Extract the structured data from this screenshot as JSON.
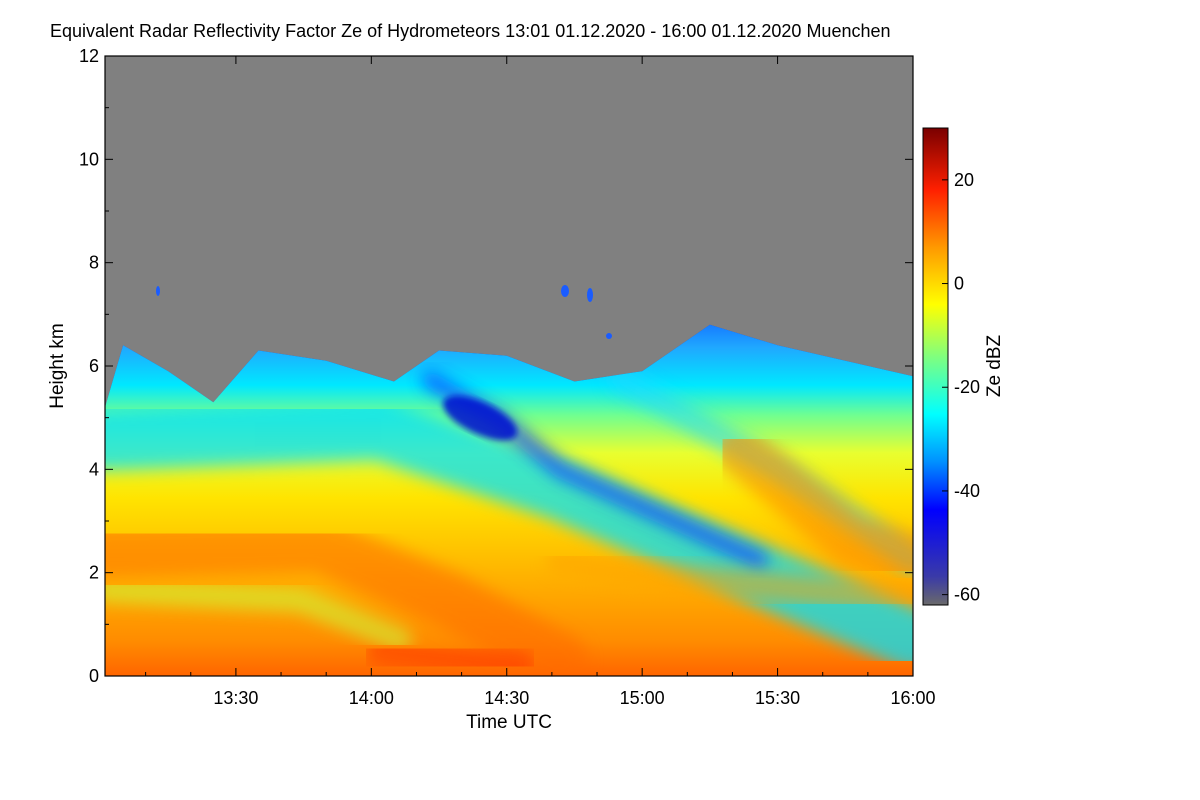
{
  "chart_data": {
    "type": "heatmap",
    "title": "Equivalent Radar Reflectivity Factor Ze of Hydrometeors   13:01 01.12.2020 - 16:00 01.12.2020 Muenchen",
    "xlabel": "Time UTC",
    "ylabel": "Height km",
    "x_range": [
      "13:01",
      "16:00"
    ],
    "ylim": [
      0,
      12
    ],
    "x_ticks": [
      "13:30",
      "14:00",
      "14:30",
      "15:00",
      "15:30",
      "16:00"
    ],
    "y_ticks": [
      "0",
      "2",
      "4",
      "6",
      "8",
      "10",
      "12"
    ],
    "colorbar": {
      "label": "Ze dBZ",
      "range": [
        -62,
        30
      ],
      "ticks": [
        "20",
        "0",
        "-20",
        "-40",
        "-60"
      ],
      "no_signal_color": "#808080"
    },
    "echo_top_km": [
      {
        "time": "13:01",
        "top": 5.2
      },
      {
        "time": "13:05",
        "top": 6.4
      },
      {
        "time": "13:15",
        "top": 5.9
      },
      {
        "time": "13:25",
        "top": 5.3
      },
      {
        "time": "13:35",
        "top": 6.3
      },
      {
        "time": "13:50",
        "top": 6.1
      },
      {
        "time": "14:05",
        "top": 5.7
      },
      {
        "time": "14:15",
        "top": 6.3
      },
      {
        "time": "14:30",
        "top": 6.2
      },
      {
        "time": "14:45",
        "top": 5.7
      },
      {
        "time": "15:00",
        "top": 5.9
      },
      {
        "time": "15:15",
        "top": 6.8
      },
      {
        "time": "15:30",
        "top": 6.4
      },
      {
        "time": "15:45",
        "top": 6.1
      },
      {
        "time": "16:00",
        "top": 5.8
      }
    ],
    "bands_dbz": [
      {
        "height_range_km": [
          0,
          1
        ],
        "ze_dbz": [
          5,
          15
        ]
      },
      {
        "height_range_km": [
          1,
          4
        ],
        "ze_dbz": [
          -5,
          10
        ]
      },
      {
        "height_range_km": [
          4,
          5
        ],
        "ze_dbz": [
          -20,
          -5
        ]
      },
      {
        "height_range_km": [
          5,
          6.5
        ],
        "ze_dbz": [
          -45,
          -20
        ]
      }
    ]
  }
}
